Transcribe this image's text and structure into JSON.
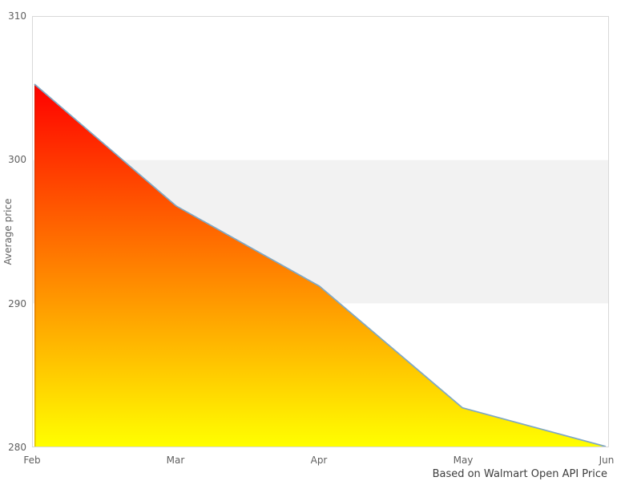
{
  "axes": {
    "y": {
      "title": "Average price",
      "ticks": [
        "310",
        "300",
        "290",
        "280"
      ]
    },
    "x": {
      "ticks": [
        "Feb",
        "Mar",
        "Apr",
        "May",
        "Jun"
      ]
    }
  },
  "caption": "Based on Walmart Open API Price",
  "chart_data": {
    "type": "area",
    "x": [
      "Feb",
      "Mar",
      "Apr",
      "May",
      "Jun"
    ],
    "values": [
      305.3,
      296.8,
      291.2,
      282.7,
      280.0
    ],
    "title": "",
    "xlabel": "",
    "ylabel": "Average price",
    "ylim": [
      280,
      310
    ],
    "yticks": [
      310,
      300,
      290,
      280
    ],
    "grid": false,
    "legend": "none",
    "caption": "Based on Walmart Open API Price",
    "plot_band": {
      "from": 290,
      "to": 300,
      "color": "#f2f2f2"
    },
    "line_color": "#7fa8c4",
    "fill_gradient": {
      "top": "#ff0000",
      "bottom": "#ffff00"
    },
    "left_edge_color": "rgba(153,51,0,0.30)",
    "plot_border_color": "#d9d9d9",
    "background_color": "#ffffff"
  }
}
